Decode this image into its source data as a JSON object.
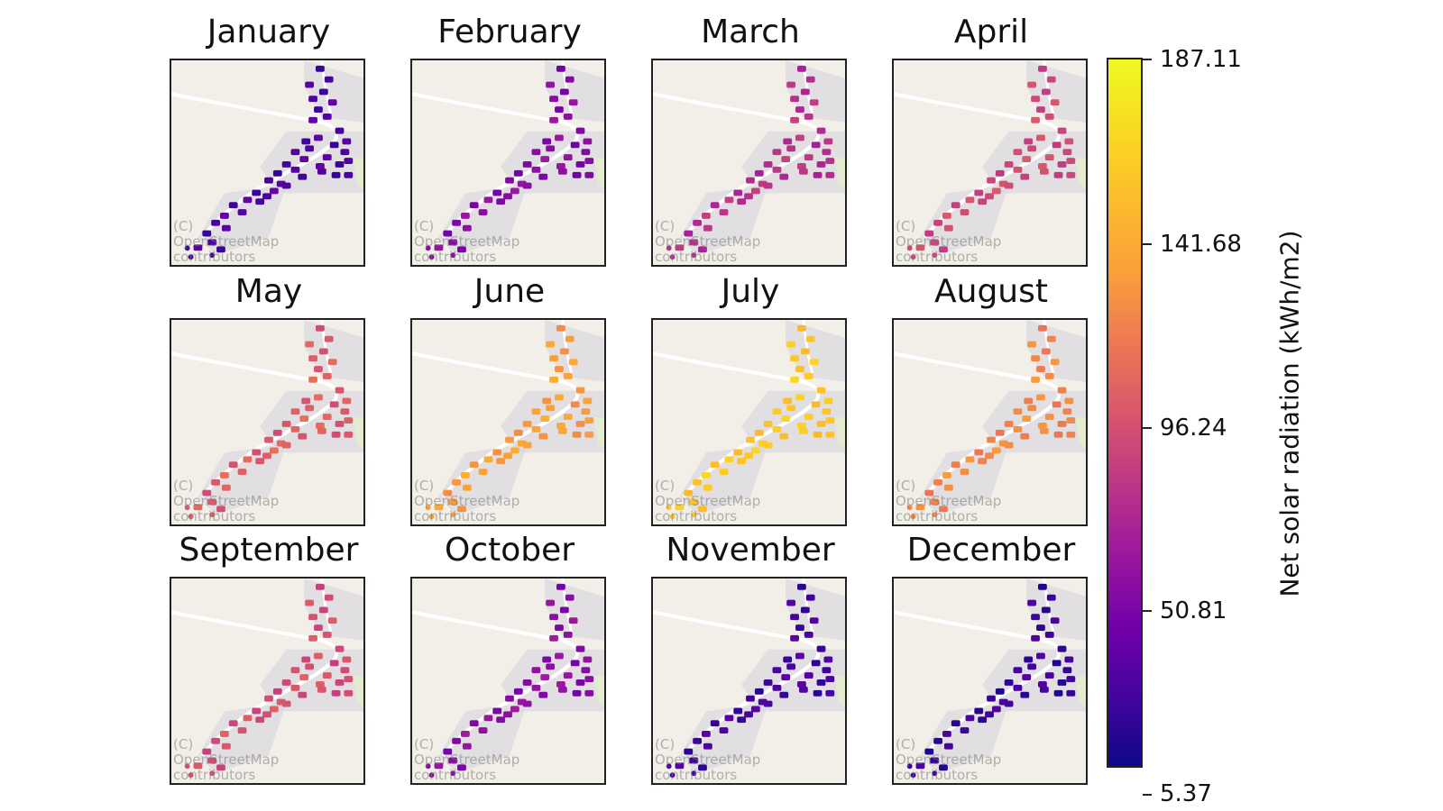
{
  "figure": {
    "panels": [
      {
        "month": "January",
        "level": 0.12
      },
      {
        "month": "February",
        "level": 0.25
      },
      {
        "month": "March",
        "level": 0.38
      },
      {
        "month": "April",
        "level": 0.46
      },
      {
        "month": "May",
        "level": 0.52
      },
      {
        "month": "June",
        "level": 0.7
      },
      {
        "month": "July",
        "level": 0.84
      },
      {
        "month": "August",
        "level": 0.64
      },
      {
        "month": "September",
        "level": 0.48
      },
      {
        "month": "October",
        "level": 0.26
      },
      {
        "month": "November",
        "level": 0.1
      },
      {
        "month": "December",
        "level": 0.08
      }
    ],
    "attribution": [
      "(C)",
      "OpenStreetMap",
      "contributors"
    ],
    "colorbar": {
      "label": "Net solar radiation (kWh/m2)",
      "ticks": [
        "187.11",
        "141.68",
        "96.24",
        "50.81",
        "5.37"
      ],
      "min": 5.37,
      "max": 187.11,
      "colormap": "plasma"
    }
  }
}
